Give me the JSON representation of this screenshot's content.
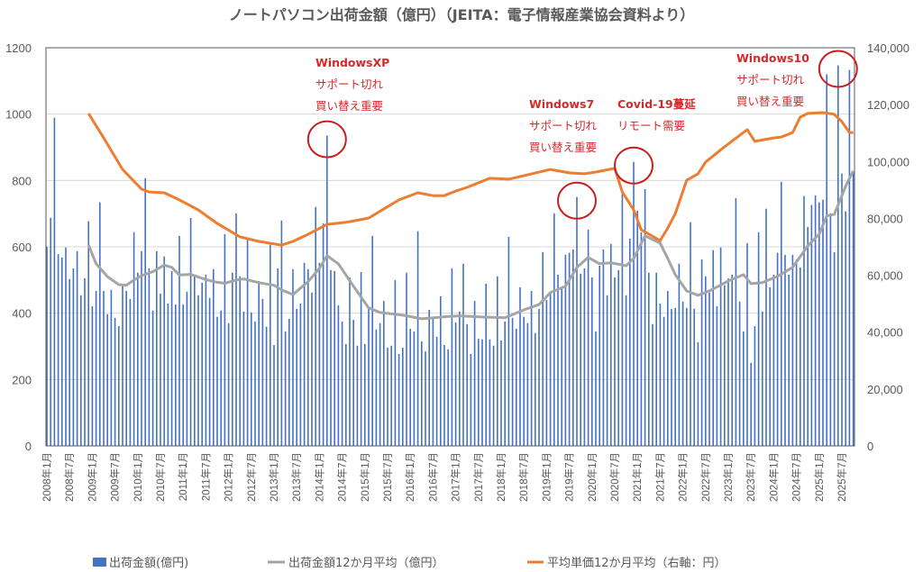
{
  "chart_data": {
    "type": "bar+line",
    "title": "ノートパソコン出荷金額（億円）（JEITA：電子情報産業協会資料より）",
    "start_month": "2008-01",
    "y_left": {
      "min": 0,
      "max": 1200,
      "step": 200,
      "ticks": [
        "0",
        "200",
        "400",
        "600",
        "800",
        "1000",
        "1200"
      ]
    },
    "y_right": {
      "min": 0,
      "max": 140000,
      "step": 20000,
      "ticks": [
        "0",
        "20,000",
        "40,000",
        "60,000",
        "80,000",
        "100,000",
        "120,000",
        "140,000"
      ]
    },
    "x_tick_labels": [
      "2008年1月",
      "2008年7月",
      "2009年1月",
      "2009年7月",
      "2010年1月",
      "2010年7月",
      "2011年1月",
      "2011年7月",
      "2012年1月",
      "2012年7月",
      "2013年1月",
      "2013年7月",
      "2014年1月",
      "2014年7月",
      "2015年1月",
      "2015年7月",
      "2016年1月",
      "2016年7月",
      "2017年1月",
      "2017年7月",
      "2018年1月",
      "2018年7月",
      "2019年1月",
      "2019年7月",
      "2020年1月",
      "2020年7月",
      "2021年1月",
      "2021年7月",
      "2022年1月",
      "2022年7月",
      "2023年1月",
      "2023年7月",
      "2024年1月",
      "2024年7月",
      "2025年1月",
      "2025年7月"
    ],
    "grid": true,
    "legend_position": "bottom",
    "series": [
      {
        "name": "出荷金額(億円)",
        "type": "bar",
        "axis": "left",
        "color": "#4472c4",
        "values": [
          600,
          687,
          989,
          578,
          568,
          598,
          503,
          535,
          587,
          454,
          505,
          677,
          421,
          467,
          734,
          467,
          397,
          470,
          386,
          361,
          481,
          467,
          443,
          644,
          522,
          587,
          807,
          535,
          408,
          587,
          459,
          571,
          429,
          527,
          426,
          633,
          426,
          465,
          687,
          511,
          454,
          492,
          516,
          446,
          533,
          389,
          408,
          638,
          370,
          522,
          701,
          511,
          405,
          625,
          402,
          375,
          497,
          443,
          359,
          606,
          304,
          535,
          679,
          345,
          383,
          533,
          413,
          429,
          552,
          533,
          462,
          720,
          552,
          671,
          935,
          530,
          527,
          424,
          375,
          307,
          508,
          380,
          302,
          524,
          307,
          416,
          633,
          351,
          370,
          437,
          296,
          302,
          500,
          277,
          296,
          522,
          353,
          345,
          647,
          315,
          285,
          410,
          383,
          329,
          451,
          304,
          291,
          535,
          372,
          405,
          549,
          367,
          277,
          437,
          323,
          321,
          489,
          321,
          302,
          511,
          318,
          375,
          630,
          386,
          353,
          478,
          389,
          370,
          467,
          340,
          413,
          584,
          440,
          465,
          701,
          516,
          476,
          576,
          582,
          592,
          750,
          519,
          535,
          652,
          508,
          345,
          543,
          592,
          454,
          609,
          508,
          530,
          766,
          454,
          625,
          856,
          709,
          644,
          774,
          522,
          367,
          522,
          429,
          389,
          467,
          413,
          416,
          549,
          435,
          416,
          674,
          413,
          313,
          562,
          511,
          462,
          590,
          421,
          598,
          484,
          505,
          516,
          747,
          435,
          345,
          611,
          250,
          361,
          644,
          405,
          715,
          478,
          516,
          582,
          796,
          576,
          516,
          576,
          562,
          538,
          753,
          660,
          726,
          755,
          734,
          742,
          1120,
          701,
          584,
          1147,
          821,
          707,
          1133,
          823
        ]
      },
      {
        "name": "出荷金額12か月平均（億円）",
        "type": "line",
        "axis": "left",
        "color": "#a5a5a5",
        "points": [
          [
            "2008-12",
            606
          ],
          [
            "2009-02",
            549
          ],
          [
            "2009-05",
            510
          ],
          [
            "2009-08",
            486
          ],
          [
            "2009-10",
            484
          ],
          [
            "2009-12",
            500
          ],
          [
            "2010-02",
            513
          ],
          [
            "2010-05",
            525
          ],
          [
            "2010-08",
            545
          ],
          [
            "2010-10",
            538
          ],
          [
            "2010-12",
            515
          ],
          [
            "2011-03",
            517
          ],
          [
            "2011-06",
            505
          ],
          [
            "2011-09",
            495
          ],
          [
            "2011-12",
            490
          ],
          [
            "2012-03",
            500
          ],
          [
            "2012-05",
            503
          ],
          [
            "2012-09",
            492
          ],
          [
            "2013-01",
            484
          ],
          [
            "2013-03",
            470
          ],
          [
            "2013-06",
            456
          ],
          [
            "2013-10",
            495
          ],
          [
            "2014-01",
            535
          ],
          [
            "2014-03",
            573
          ],
          [
            "2014-06",
            549
          ],
          [
            "2014-10",
            481
          ],
          [
            "2015-02",
            416
          ],
          [
            "2015-05",
            402
          ],
          [
            "2015-11",
            394
          ],
          [
            "2016-04",
            383
          ],
          [
            "2016-10",
            389
          ],
          [
            "2017-02",
            392
          ],
          [
            "2017-07",
            389
          ],
          [
            "2018-02",
            386
          ],
          [
            "2018-07",
            410
          ],
          [
            "2018-11",
            426
          ],
          [
            "2019-02",
            462
          ],
          [
            "2019-06",
            481
          ],
          [
            "2019-09",
            538
          ],
          [
            "2019-12",
            568
          ],
          [
            "2020-03",
            549
          ],
          [
            "2020-06",
            552
          ],
          [
            "2020-10",
            543
          ],
          [
            "2020-12",
            565
          ],
          [
            "2021-03",
            633
          ],
          [
            "2021-07",
            611
          ],
          [
            "2021-09",
            565
          ],
          [
            "2021-11",
            516
          ],
          [
            "2022-02",
            467
          ],
          [
            "2022-05",
            454
          ],
          [
            "2022-08",
            467
          ],
          [
            "2023-01",
            497
          ],
          [
            "2023-05",
            516
          ],
          [
            "2023-07",
            489
          ],
          [
            "2023-10",
            492
          ],
          [
            "2024-02",
            511
          ],
          [
            "2024-06",
            538
          ],
          [
            "2024-10",
            603
          ],
          [
            "2025-01",
            638
          ],
          [
            "2025-03",
            693
          ],
          [
            "2025-05",
            698
          ],
          [
            "2025-08",
            783
          ],
          [
            "2025-10",
            829
          ]
        ]
      },
      {
        "name": "平均単価12か月平均（右軸：円）",
        "type": "line",
        "axis": "right",
        "color": "#ed7d31",
        "points": [
          [
            "2008-12",
            116900
          ],
          [
            "2009-04",
            108300
          ],
          [
            "2009-09",
            97200
          ],
          [
            "2010-02",
            90300
          ],
          [
            "2010-04",
            89300
          ],
          [
            "2010-08",
            89000
          ],
          [
            "2010-12",
            86500
          ],
          [
            "2011-05",
            83000
          ],
          [
            "2011-10",
            78200
          ],
          [
            "2012-04",
            73500
          ],
          [
            "2012-09",
            71900
          ],
          [
            "2013-03",
            70600
          ],
          [
            "2013-06",
            71900
          ],
          [
            "2013-10",
            74400
          ],
          [
            "2014-03",
            77900
          ],
          [
            "2014-08",
            78600
          ],
          [
            "2015-02",
            80100
          ],
          [
            "2015-06",
            83300
          ],
          [
            "2015-10",
            86500
          ],
          [
            "2016-03",
            89000
          ],
          [
            "2016-07",
            88000
          ],
          [
            "2016-10",
            88000
          ],
          [
            "2017-01",
            89600
          ],
          [
            "2017-04",
            90900
          ],
          [
            "2017-10",
            94100
          ],
          [
            "2018-03",
            93800
          ],
          [
            "2018-08",
            95300
          ],
          [
            "2019-02",
            97200
          ],
          [
            "2019-07",
            96000
          ],
          [
            "2019-11",
            95700
          ],
          [
            "2020-02",
            96300
          ],
          [
            "2020-07",
            97600
          ],
          [
            "2020-09",
            89300
          ],
          [
            "2020-12",
            83000
          ],
          [
            "2021-02",
            76000
          ],
          [
            "2021-07",
            72200
          ],
          [
            "2021-09",
            76600
          ],
          [
            "2021-11",
            81700
          ],
          [
            "2022-02",
            93400
          ],
          [
            "2022-05",
            95700
          ],
          [
            "2022-07",
            99800
          ],
          [
            "2022-12",
            105200
          ],
          [
            "2023-06",
            111200
          ],
          [
            "2023-08",
            107100
          ],
          [
            "2024-01",
            108300
          ],
          [
            "2024-03",
            108600
          ],
          [
            "2024-06",
            110200
          ],
          [
            "2024-08",
            115600
          ],
          [
            "2024-10",
            116900
          ],
          [
            "2025-02",
            117200
          ],
          [
            "2025-05",
            116600
          ],
          [
            "2025-07",
            114000
          ],
          [
            "2025-09",
            110200
          ],
          [
            "2025-10",
            110200
          ]
        ]
      }
    ],
    "annotations": [
      {
        "lines": [
          "WindowsXP",
          "サポート切れ",
          "買い替え重要"
        ],
        "circle_month": "2014-03",
        "circle_value": 935
      },
      {
        "lines": [
          "Windows7",
          "サポート切れ",
          "買い替え重要"
        ],
        "circle_month": "2019-09",
        "circle_value": 750
      },
      {
        "lines": [
          "Covid-19蔓延",
          "リモート需要"
        ],
        "circle_month": "2020-12",
        "circle_value": 856
      },
      {
        "lines": [
          "Windows10",
          "サポート切れ",
          "買い替え重要"
        ],
        "circle_month": "2025-06",
        "circle_value": 1147
      }
    ],
    "annotation_color": "#d62a2a"
  }
}
